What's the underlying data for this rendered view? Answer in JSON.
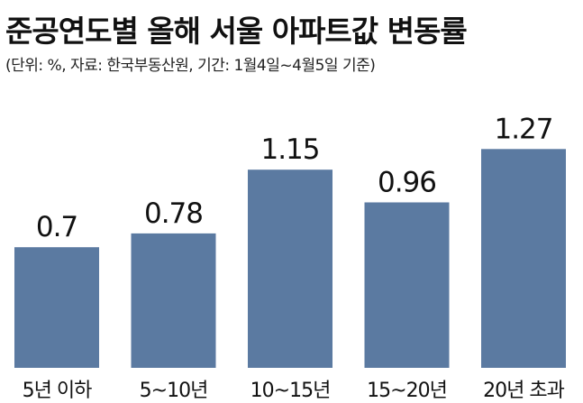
{
  "header": {
    "title": "준공연도별 올해 서울 아파트값 변동률",
    "subtitle": "(단위: %, 자료: 한국부동산원, 기간: 1월4일~4월5일 기준)"
  },
  "colors": {
    "bar": "#5b7aa1",
    "text": "#111111"
  },
  "chart_data": {
    "type": "bar",
    "title": "준공연도별 올해 서울 아파트값 변동률",
    "subtitle": "(단위: %, 자료: 한국부동산원, 기간: 1월4일~4월5일 기준)",
    "unit": "%",
    "categories": [
      "5년 이하",
      "5~10년",
      "10~15년",
      "15~20년",
      "20년 초과"
    ],
    "values": [
      0.7,
      0.78,
      1.15,
      0.96,
      1.27
    ],
    "data_labels": [
      "0.7",
      "0.78",
      "1.15",
      "0.96",
      "1.27"
    ],
    "xlabel": "",
    "ylabel": "",
    "ylim": [
      0,
      1.35
    ],
    "grid": false,
    "legend": "none"
  }
}
